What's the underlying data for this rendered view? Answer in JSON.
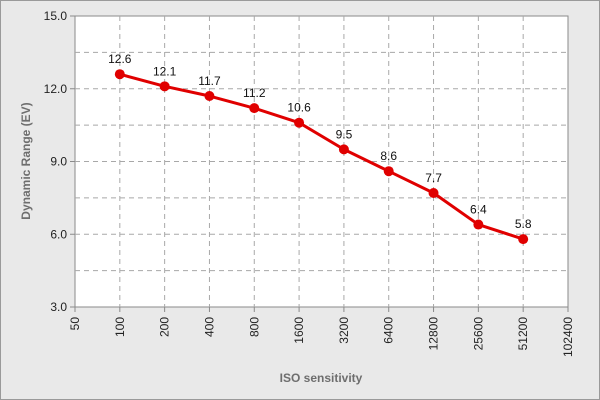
{
  "chart_data": {
    "type": "line",
    "title": "",
    "xlabel": "ISO sensitivity",
    "ylabel": "Dynamic Range (EV)",
    "x_scale": "log2",
    "x_ticks": [
      "50",
      "100",
      "200",
      "400",
      "800",
      "1600",
      "3200",
      "6400",
      "12800",
      "25600",
      "51200",
      "102400"
    ],
    "y_ticks": [
      "3.0",
      "6.0",
      "9.0",
      "12.0",
      "15.0"
    ],
    "ylim": [
      3,
      15
    ],
    "grid": true,
    "legend": "none",
    "series": [
      {
        "color": "#e00000",
        "points": [
          {
            "x": 100,
            "y": 12.6,
            "label": "12.6"
          },
          {
            "x": 200,
            "y": 12.1,
            "label": "12.1"
          },
          {
            "x": 400,
            "y": 11.7,
            "label": "11.7"
          },
          {
            "x": 800,
            "y": 11.2,
            "label": "11.2"
          },
          {
            "x": 1600,
            "y": 10.6,
            "label": "10.6"
          },
          {
            "x": 3200,
            "y": 9.5,
            "label": "9.5"
          },
          {
            "x": 6400,
            "y": 8.6,
            "label": "8.6"
          },
          {
            "x": 12800,
            "y": 7.7,
            "label": "7.7"
          },
          {
            "x": 25600,
            "y": 6.4,
            "label": "6.4"
          },
          {
            "x": 51200,
            "y": 5.8,
            "label": "5.8"
          }
        ]
      }
    ]
  }
}
